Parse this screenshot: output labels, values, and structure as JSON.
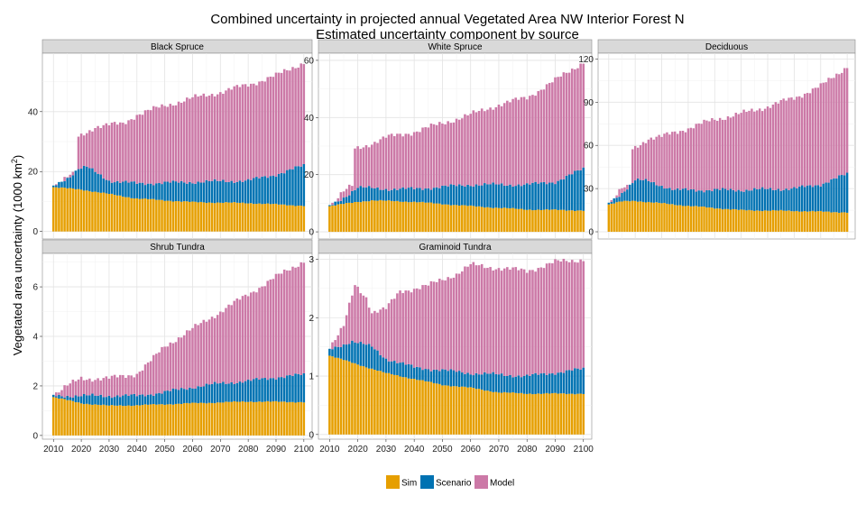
{
  "chart_data": {
    "type": "bar",
    "stacked": true,
    "title_line1": "Combined uncertainty in projected annual  Vegetated Area NW Interior Forest N",
    "title_line2": "Estimated uncertainty component by source",
    "ylabel_main": "Vegetated area uncertainty (1000 km",
    "ylabel_sup": "2",
    "ylabel_close": ")",
    "xlim": [
      2007,
      2102
    ],
    "x_ticks": [
      2010,
      2020,
      2030,
      2040,
      2050,
      2060,
      2070,
      2080,
      2090,
      2100
    ],
    "grid": true,
    "legend_position": "bottom",
    "legend": [
      {
        "label": "Sim",
        "color": "#E69F00"
      },
      {
        "label": "Scenario",
        "color": "#0072B2"
      },
      {
        "label": "Model",
        "color": "#CC79A7"
      }
    ],
    "panels": [
      {
        "name": "Black Spruce",
        "ylim": [
          -2.5,
          59.5
        ],
        "y_ticks": [
          0,
          20,
          40
        ],
        "sim_anchors": [
          [
            2010,
            14.8
          ],
          [
            2020,
            14.0
          ],
          [
            2040,
            11.0
          ],
          [
            2060,
            9.8
          ],
          [
            2080,
            9.5
          ],
          [
            2100,
            8.6
          ]
        ],
        "scenario_anchors": [
          [
            2010,
            15.0
          ],
          [
            2016,
            18.5
          ],
          [
            2019,
            21.0
          ],
          [
            2022,
            21.5
          ],
          [
            2030,
            17.0
          ],
          [
            2040,
            16.0
          ],
          [
            2060,
            16.5
          ],
          [
            2080,
            17.0
          ],
          [
            2090,
            19.0
          ],
          [
            2100,
            22.0
          ]
        ],
        "model_anchors": [
          [
            2010,
            15.0
          ],
          [
            2016,
            18.6
          ],
          [
            2018,
            19.0
          ],
          [
            2019,
            31.5
          ],
          [
            2025,
            35.0
          ],
          [
            2035,
            36.0
          ],
          [
            2040,
            39.0
          ],
          [
            2050,
            42.0
          ],
          [
            2060,
            44.5
          ],
          [
            2070,
            46.5
          ],
          [
            2080,
            49.0
          ],
          [
            2090,
            52.0
          ],
          [
            2100,
            56.5
          ]
        ]
      },
      {
        "name": "White Spruce",
        "ylim": [
          -2.5,
          62.5
        ],
        "y_ticks": [
          0,
          20,
          40,
          60
        ],
        "sim_anchors": [
          [
            2010,
            9.0
          ],
          [
            2020,
            10.5
          ],
          [
            2025,
            11.0
          ],
          [
            2040,
            10.5
          ],
          [
            2060,
            9.0
          ],
          [
            2080,
            7.8
          ],
          [
            2100,
            7.5
          ]
        ],
        "scenario_anchors": [
          [
            2010,
            9.0
          ],
          [
            2015,
            12.0
          ],
          [
            2020,
            15.5
          ],
          [
            2030,
            15.0
          ],
          [
            2040,
            15.0
          ],
          [
            2060,
            16.5
          ],
          [
            2080,
            16.5
          ],
          [
            2090,
            17.5
          ],
          [
            2100,
            22.0
          ]
        ],
        "model_anchors": [
          [
            2010,
            9.0
          ],
          [
            2015,
            14.0
          ],
          [
            2018,
            16.0
          ],
          [
            2019,
            29.0
          ],
          [
            2025,
            31.0
          ],
          [
            2030,
            33.0
          ],
          [
            2040,
            35.0
          ],
          [
            2050,
            38.0
          ],
          [
            2060,
            41.0
          ],
          [
            2070,
            44.5
          ],
          [
            2080,
            47.0
          ],
          [
            2090,
            53.0
          ],
          [
            2100,
            59.5
          ]
        ]
      },
      {
        "name": "Deciduous",
        "ylim": [
          -5,
          124
        ],
        "y_ticks": [
          0,
          30,
          60,
          90,
          120
        ],
        "sim_anchors": [
          [
            2010,
            19.0
          ],
          [
            2015,
            21.0
          ],
          [
            2020,
            21.5
          ],
          [
            2040,
            18.0
          ],
          [
            2060,
            15.0
          ],
          [
            2080,
            14.5
          ],
          [
            2100,
            13.5
          ]
        ],
        "scenario_anchors": [
          [
            2010,
            19.5
          ],
          [
            2015,
            27.0
          ],
          [
            2020,
            36.0
          ],
          [
            2025,
            35.0
          ],
          [
            2035,
            29.0
          ],
          [
            2060,
            29.0
          ],
          [
            2080,
            30.0
          ],
          [
            2090,
            33.0
          ],
          [
            2100,
            40.0
          ]
        ],
        "model_anchors": [
          [
            2010,
            19.5
          ],
          [
            2015,
            30.0
          ],
          [
            2018,
            30.5
          ],
          [
            2019,
            57.0
          ],
          [
            2025,
            65.0
          ],
          [
            2030,
            66.0
          ],
          [
            2040,
            72.0
          ],
          [
            2050,
            78.0
          ],
          [
            2060,
            82.0
          ],
          [
            2070,
            87.0
          ],
          [
            2080,
            93.0
          ],
          [
            2090,
            101.0
          ],
          [
            2100,
            115.0
          ]
        ]
      },
      {
        "name": "Shrub Tundra",
        "ylim": [
          -0.15,
          7.35
        ],
        "y_ticks": [
          0,
          2,
          4,
          6
        ],
        "sim_anchors": [
          [
            2010,
            1.55
          ],
          [
            2020,
            1.3
          ],
          [
            2030,
            1.2
          ],
          [
            2040,
            1.22
          ],
          [
            2060,
            1.3
          ],
          [
            2080,
            1.37
          ],
          [
            2100,
            1.35
          ]
        ],
        "scenario_anchors": [
          [
            2010,
            1.6
          ],
          [
            2020,
            1.6
          ],
          [
            2030,
            1.6
          ],
          [
            2040,
            1.6
          ],
          [
            2050,
            1.75
          ],
          [
            2060,
            1.95
          ],
          [
            2070,
            2.1
          ],
          [
            2080,
            2.2
          ],
          [
            2090,
            2.35
          ],
          [
            2100,
            2.45
          ]
        ],
        "model_anchors": [
          [
            2010,
            1.65
          ],
          [
            2015,
            2.0
          ],
          [
            2020,
            2.3
          ],
          [
            2030,
            2.3
          ],
          [
            2040,
            2.5
          ],
          [
            2045,
            3.0
          ],
          [
            2050,
            3.6
          ],
          [
            2060,
            4.3
          ],
          [
            2070,
            5.0
          ],
          [
            2080,
            5.7
          ],
          [
            2090,
            6.4
          ],
          [
            2100,
            7.05
          ]
        ]
      },
      {
        "name": "Graminoid Tundra",
        "ylim": [
          -0.08,
          3.1
        ],
        "y_ticks": [
          0,
          1,
          2,
          3
        ],
        "sim_anchors": [
          [
            2010,
            1.35
          ],
          [
            2020,
            1.2
          ],
          [
            2030,
            1.05
          ],
          [
            2040,
            0.95
          ],
          [
            2050,
            0.85
          ],
          [
            2060,
            0.8
          ],
          [
            2070,
            0.72
          ],
          [
            2080,
            0.7
          ],
          [
            2100,
            0.7
          ]
        ],
        "scenario_anchors": [
          [
            2010,
            1.45
          ],
          [
            2018,
            1.6
          ],
          [
            2025,
            1.5
          ],
          [
            2030,
            1.3
          ],
          [
            2040,
            1.15
          ],
          [
            2060,
            1.05
          ],
          [
            2080,
            1.0
          ],
          [
            2100,
            1.12
          ]
        ],
        "model_anchors": [
          [
            2010,
            1.5
          ],
          [
            2015,
            1.85
          ],
          [
            2019,
            2.55
          ],
          [
            2023,
            2.35
          ],
          [
            2025,
            2.1
          ],
          [
            2030,
            2.15
          ],
          [
            2035,
            2.45
          ],
          [
            2045,
            2.55
          ],
          [
            2055,
            2.75
          ],
          [
            2060,
            2.9
          ],
          [
            2070,
            2.85
          ],
          [
            2080,
            2.8
          ],
          [
            2090,
            2.95
          ],
          [
            2100,
            3.0
          ]
        ]
      }
    ]
  }
}
